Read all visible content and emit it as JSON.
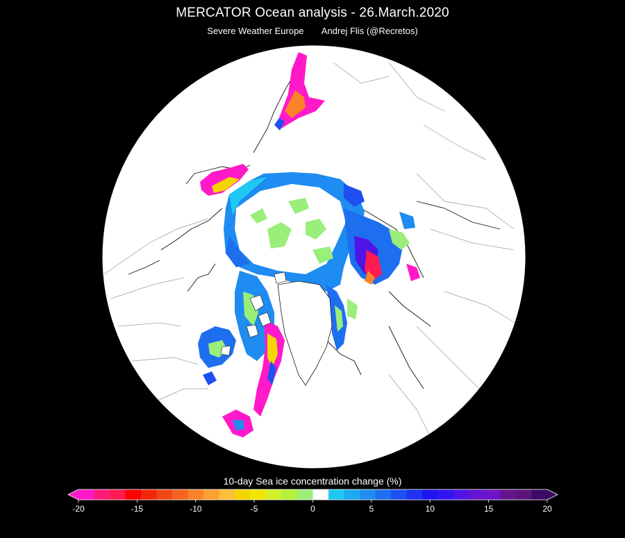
{
  "header": {
    "title": "MERCATOR Ocean analysis  -  26.March.2020",
    "source": "Severe Weather Europe",
    "author": "Andrej Flis (@Recretos)"
  },
  "map": {
    "projection": "north-polar-stereographic",
    "background_color": "#000000",
    "land_color": "#ffffff",
    "coastline_color": "#000000"
  },
  "legend": {
    "title": "10-day  Sea ice concentration change (%)",
    "min": -20,
    "max": 20,
    "tick_labels": [
      "-20",
      "-15",
      "-10",
      "-5",
      "0",
      "5",
      "10",
      "15",
      "20"
    ],
    "colors": [
      "#ff19c8",
      "#ff1a7a",
      "#ff1b4f",
      "#ff0000",
      "#f0280a",
      "#f04614",
      "#f5641e",
      "#fa8228",
      "#fca032",
      "#fcbe3c",
      "#f5d500",
      "#f0e600",
      "#d2f028",
      "#b4f03c",
      "#9aee7a",
      "#ffffff",
      "#1ec8f0",
      "#1eaaf0",
      "#1e8cf0",
      "#1e6ef0",
      "#1e50f0",
      "#1e32f0",
      "#1e14f0",
      "#3214f0",
      "#5014e6",
      "#6414d2",
      "#6e14c8",
      "#64148c",
      "#5a1478",
      "#3c0a64"
    ]
  }
}
